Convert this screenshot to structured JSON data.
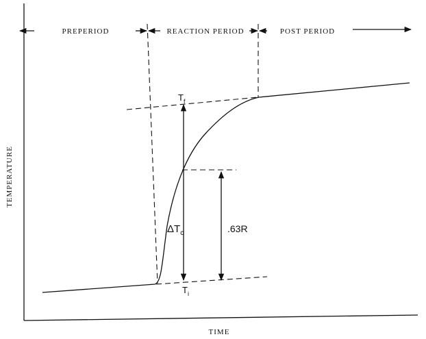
{
  "diagram": {
    "periods": [
      "PREPERIOD",
      "REACTION PERIOD",
      "POST PERIOD"
    ],
    "y_axis_label": "TEMPERATURE",
    "x_axis_label": "TIME",
    "labels": {
      "final": {
        "main": "T",
        "sub": "f"
      },
      "initial": {
        "main": "T",
        "sub": "i"
      },
      "delta": {
        "main": "ΔT",
        "sub": "c"
      },
      "fraction": ".63R"
    }
  }
}
